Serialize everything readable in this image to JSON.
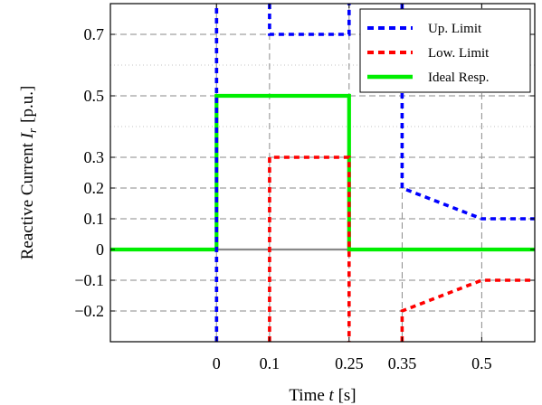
{
  "chart_data": {
    "type": "line",
    "xlabel_prefix": "Time",
    "xlabel_var": "t",
    "xlabel_unit": "[s]",
    "ylabel_prefix": "Reactive Current",
    "ylabel_var": "I",
    "ylabel_sub": "r",
    "ylabel_unit": "[p.u.]",
    "xlim": [
      -0.2,
      0.6
    ],
    "ylim": [
      -0.3,
      0.8
    ],
    "x_ticks": [
      {
        "value": 0,
        "label": "0"
      },
      {
        "value": 0.1,
        "label": "0.1"
      },
      {
        "value": 0.25,
        "label": "0.25"
      },
      {
        "value": 0.35,
        "label": "0.35"
      },
      {
        "value": 0.5,
        "label": "0.5"
      }
    ],
    "y_ticks": [
      {
        "value": 0.7,
        "label": "0.7"
      },
      {
        "value": 0.5,
        "label": "0.5"
      },
      {
        "value": 0.3,
        "label": "0.3"
      },
      {
        "value": 0.2,
        "label": "0.2"
      },
      {
        "value": 0.1,
        "label": "0.1"
      },
      {
        "value": 0,
        "label": "0"
      },
      {
        "value": -0.1,
        "label": "−0.1"
      },
      {
        "value": -0.2,
        "label": "−0.2"
      }
    ],
    "minor_y_grid": [
      0.6,
      0.4
    ],
    "grid": true,
    "legend_position": "top-right",
    "series": [
      {
        "name": "Up. Limit",
        "color": "#0000ff",
        "dash": "dashed",
        "segments": [
          [
            [
              0,
              -0.3
            ],
            [
              0,
              0.8
            ]
          ],
          [
            [
              0.1,
              0.8
            ],
            [
              0.1,
              0.7
            ],
            [
              0.25,
              0.7
            ],
            [
              0.25,
              0.8
            ]
          ],
          [
            [
              0.35,
              0.8
            ],
            [
              0.35,
              0.2
            ],
            [
              0.5,
              0.1
            ],
            [
              0.6,
              0.1
            ]
          ]
        ]
      },
      {
        "name": "Low. Limit",
        "color": "#ff0000",
        "dash": "dashed",
        "segments": [
          [
            [
              0,
              -0.3
            ],
            [
              0,
              0.8
            ]
          ],
          [
            [
              0.1,
              -0.3
            ],
            [
              0.1,
              0.3
            ],
            [
              0.25,
              0.3
            ],
            [
              0.25,
              -0.3
            ]
          ],
          [
            [
              0.35,
              -0.3
            ],
            [
              0.35,
              -0.2
            ],
            [
              0.5,
              -0.1
            ],
            [
              0.6,
              -0.1
            ]
          ]
        ]
      },
      {
        "name": "Ideal Resp.",
        "color": "#00ee00",
        "dash": "solid",
        "segments": [
          [
            [
              -0.2,
              0
            ],
            [
              0,
              0
            ],
            [
              0,
              0.5
            ],
            [
              0.25,
              0.5
            ],
            [
              0.25,
              0
            ],
            [
              0.6,
              0
            ]
          ]
        ]
      }
    ]
  }
}
